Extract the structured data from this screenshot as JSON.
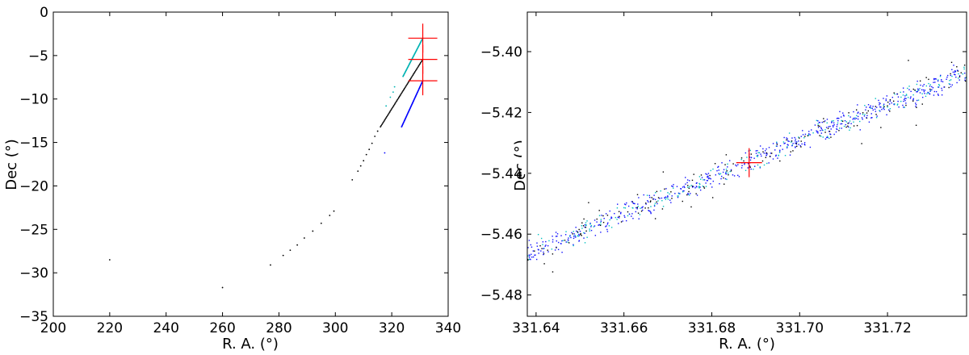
{
  "chart_data": [
    {
      "type": "scatter",
      "xlabel": "R. A. (°)",
      "ylabel": "Dec (°)",
      "xlim": [
        200,
        340
      ],
      "ylim": [
        -35,
        0
      ],
      "xticks": [
        200,
        220,
        240,
        260,
        280,
        300,
        320,
        340
      ],
      "yticks": [
        -35,
        -30,
        -25,
        -20,
        -15,
        -10,
        -5,
        0
      ],
      "grid": false,
      "colors": {
        "black": "#000000",
        "cyan": "#00b3b3",
        "blue": "#0000ff",
        "red": "#ff0000"
      },
      "series": [
        {
          "color": "#000000",
          "points": [
            [
              220.0,
              -28.5
            ],
            [
              260.0,
              -31.7
            ],
            [
              277.0,
              -29.1
            ],
            [
              281.5,
              -28.0
            ],
            [
              284.0,
              -27.4
            ],
            [
              286.5,
              -26.8
            ],
            [
              289.0,
              -26.0
            ],
            [
              292.0,
              -25.2
            ],
            [
              295.0,
              -24.3
            ],
            [
              298.0,
              -23.4
            ],
            [
              299.5,
              -22.9
            ],
            [
              306.0,
              -19.3
            ],
            [
              308.0,
              -18.3
            ],
            [
              309.0,
              -17.7
            ],
            [
              310.0,
              -17.1
            ],
            [
              311.0,
              -16.4
            ],
            [
              312.0,
              -15.8
            ],
            [
              313.0,
              -15.1
            ],
            [
              314.0,
              -14.3
            ],
            [
              315.0,
              -13.7
            ]
          ]
        },
        {
          "color": "#0000ff",
          "points": [
            [
              317.5,
              -16.2
            ]
          ]
        },
        {
          "color": "#00b3b3",
          "points": [
            [
              318.0,
              -10.8
            ],
            [
              319.5,
              -9.8
            ],
            [
              320.5,
              -9.2
            ],
            [
              321.0,
              -8.6
            ]
          ]
        }
      ],
      "segments": [
        {
          "color": "#00b3b3",
          "from": [
            324.0,
            -7.4
          ],
          "to": [
            331.0,
            -3.0
          ]
        },
        {
          "color": "#000000",
          "from": [
            316.0,
            -13.2
          ],
          "to": [
            331.0,
            -5.44
          ]
        },
        {
          "color": "#0000ff",
          "from": [
            323.5,
            -13.2
          ],
          "to": [
            331.0,
            -7.9
          ]
        }
      ],
      "crosses": [
        {
          "center": [
            331.0,
            -3.0
          ],
          "color": "#ff0000"
        },
        {
          "center": [
            331.0,
            -5.44
          ],
          "color": "#ff0000"
        },
        {
          "center": [
            331.0,
            -7.9
          ],
          "color": "#ff0000"
        }
      ]
    },
    {
      "type": "scatter",
      "xlabel": "R. A. (°)",
      "ylabel": "Dec (°)",
      "xlim": [
        331.638,
        331.738
      ],
      "ylim": [
        -5.487,
        -5.387
      ],
      "xticks": [
        331.64,
        331.66,
        331.68,
        331.7,
        331.72
      ],
      "xtick_labels": [
        "331.64",
        "331.66",
        "331.68",
        "331.70",
        "331.72"
      ],
      "yticks": [
        -5.48,
        -5.46,
        -5.44,
        -5.42,
        -5.4
      ],
      "ytick_labels": [
        "−5.48",
        "−5.46",
        "−5.44",
        "−5.42",
        "−5.40"
      ],
      "grid": false,
      "colors": {
        "blue": "#1010ff",
        "cyan": "#00c0c0",
        "black": "#000000",
        "red": "#ff0000"
      },
      "band": {
        "from": [
          331.638,
          -5.4665
        ],
        "to": [
          331.738,
          -5.4065
        ]
      },
      "cross": {
        "center": [
          331.6885,
          -5.4365
        ],
        "color": "#ff0000"
      }
    }
  ]
}
